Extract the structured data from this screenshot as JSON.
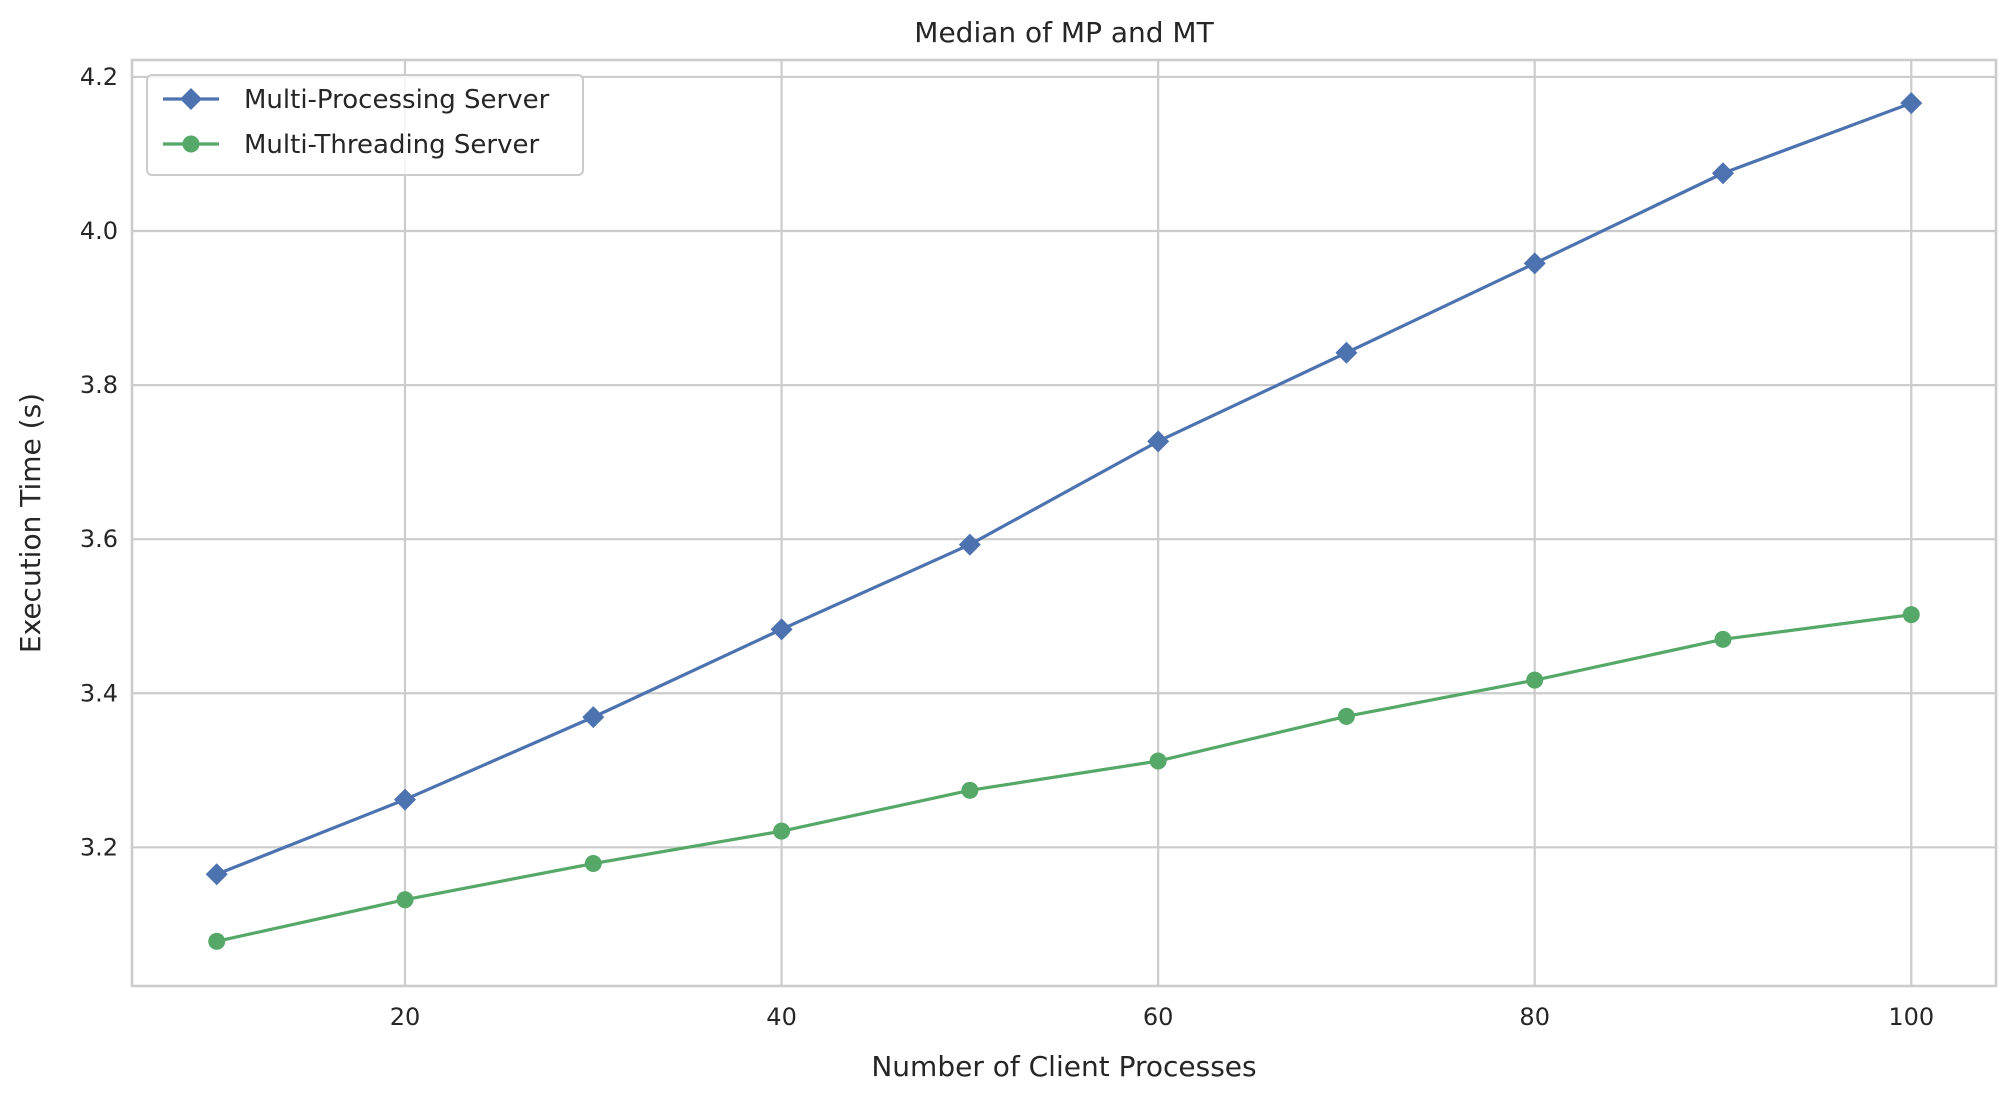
{
  "chart_data": {
    "type": "line",
    "title": "Median of MP and MT",
    "xlabel": "Number of Client Processes",
    "ylabel": "Execution Time (s)",
    "xlim": [
      5.5,
      104.5
    ],
    "ylim": [
      3.02,
      4.222
    ],
    "xticks": [
      20,
      40,
      60,
      80,
      100
    ],
    "yticks": [
      3.2,
      3.4,
      3.6,
      3.8,
      4.0,
      4.2
    ],
    "ytick_labels": [
      "3.2",
      "3.4",
      "3.6",
      "3.8",
      "4.0",
      "4.2"
    ],
    "grid": true,
    "legend_position": "top-left",
    "x": [
      10,
      20,
      30,
      40,
      50,
      60,
      70,
      80,
      90,
      100
    ],
    "series": [
      {
        "name": "Multi-Processing Server",
        "color": "#4c72b0",
        "marker": "diamond",
        "values": [
          3.165,
          3.262,
          3.369,
          3.483,
          3.593,
          3.727,
          3.842,
          3.958,
          4.075,
          4.166
        ]
      },
      {
        "name": "Multi-Threading Server",
        "color": "#55a868",
        "marker": "circle",
        "values": [
          3.078,
          3.132,
          3.179,
          3.221,
          3.274,
          3.312,
          3.37,
          3.417,
          3.47,
          3.502
        ]
      }
    ]
  }
}
